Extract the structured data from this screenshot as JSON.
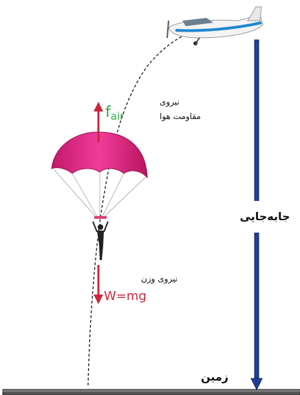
{
  "labels": {
    "air_resistance": {
      "line1": "نیروی",
      "line2": "مقاومت هوا"
    },
    "f_air": {
      "symbol": "f",
      "subscript": "air"
    },
    "weight": {
      "text": "نیروی وزن",
      "formula": "W=mg"
    },
    "displacement": "جابه‌جایی",
    "ground": "زمین"
  }
}
